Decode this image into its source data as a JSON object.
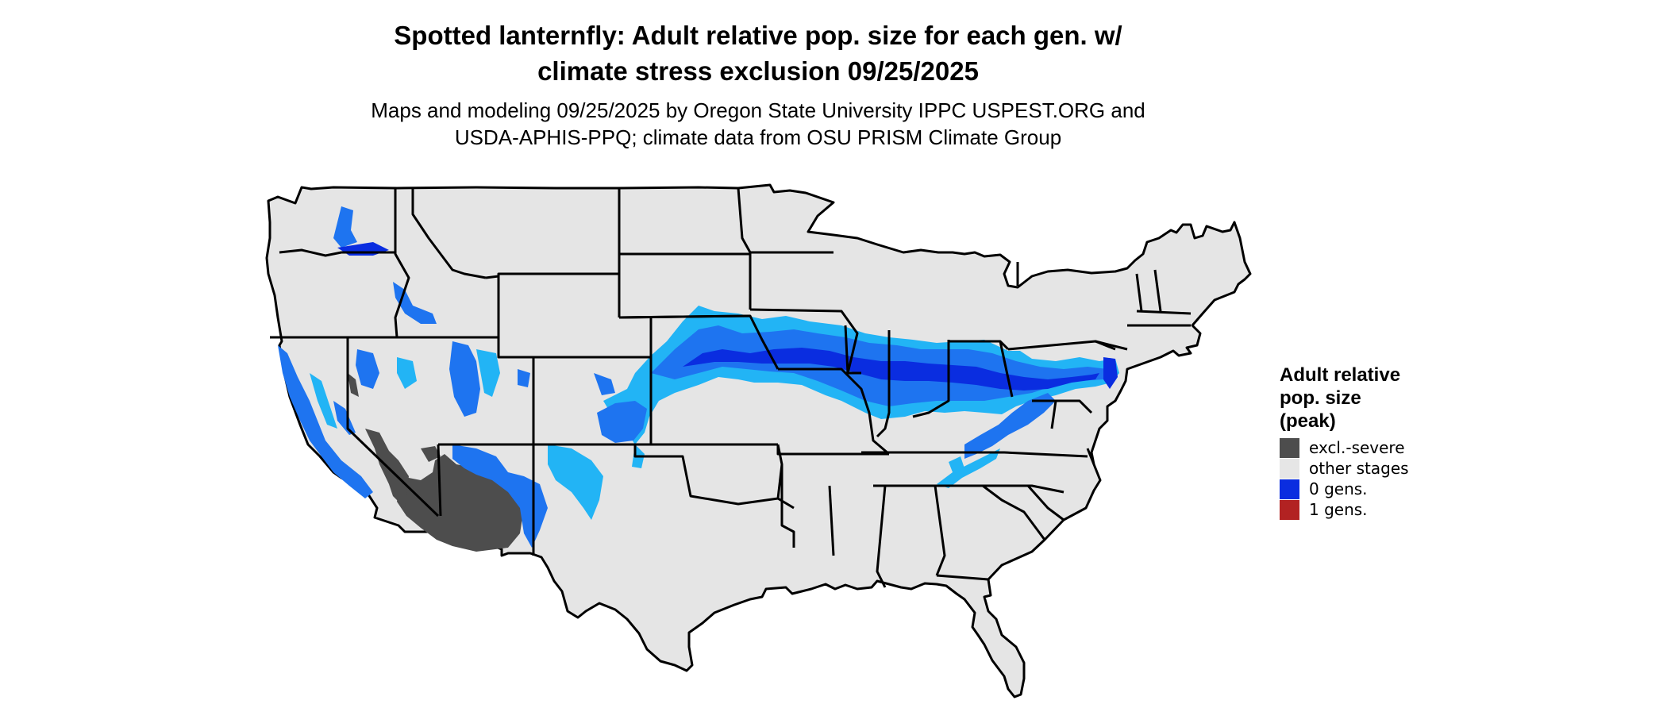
{
  "title_line1": "Spotted lanternfly: Adult relative pop. size for each gen. w/",
  "title_line2": "climate stress exclusion 09/25/2025",
  "subtitle_line1": "Maps and modeling 09/25/2025 by Oregon State University IPPC USPEST.ORG and",
  "subtitle_line2": "USDA-APHIS-PPQ; climate data from OSU PRISM Climate Group",
  "legend": {
    "title_line1": "Adult relative",
    "title_line2": "pop. size",
    "title_line3": "(peak)",
    "items": [
      {
        "label": "excl.-severe",
        "color": "#4d4d4d"
      },
      {
        "label": "other stages",
        "color": "#e6e6e6"
      },
      {
        "label": "0 gens.",
        "color": "#0a2de0"
      },
      {
        "label": "1 gens.",
        "color": "#b22222"
      }
    ]
  },
  "colors": {
    "land": "#e5e5e5",
    "border": "#000000",
    "excluded": "#4d4d4d",
    "zero_gen_dark": "#0a2de0",
    "zero_gen_mid": "#1e74f0",
    "zero_gen_light": "#22b4f5"
  }
}
